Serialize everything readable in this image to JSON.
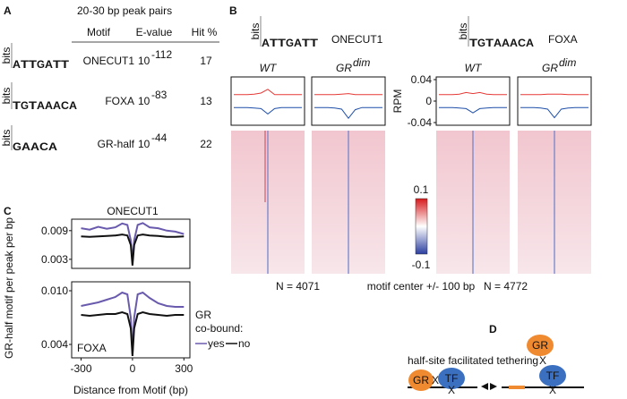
{
  "panel_a": {
    "label": "A",
    "title": "20-30 bp peak pairs",
    "headers": [
      "Motif",
      "E-value",
      "Hit %"
    ],
    "rows": [
      {
        "logo": [
          "A",
          "T",
          "T",
          "G",
          "A",
          "T",
          "T"
        ],
        "logo_axis": "bits",
        "motif": "ONECUT1",
        "evalue": {
          "base": "10",
          "exponent": "-112"
        },
        "hit": 17
      },
      {
        "logo": [
          "T",
          "G",
          "T",
          "A",
          "A",
          "A",
          "C",
          "A"
        ],
        "logo_axis": "bits",
        "motif": "FOXA",
        "evalue": {
          "base": "10",
          "exponent": "-83"
        },
        "hit": 13
      },
      {
        "logo": [
          "G",
          "A",
          "A",
          "C",
          "A"
        ],
        "logo_axis": "bits",
        "motif": "GR-half",
        "evalue": {
          "base": "10",
          "exponent": "-44"
        },
        "hit": 22
      }
    ]
  },
  "panel_b": {
    "label": "B",
    "motifs": [
      {
        "logo": [
          "A",
          "T",
          "T",
          "G",
          "A",
          "T",
          "T"
        ],
        "logo_axis": "bits",
        "name": "ONECUT1"
      },
      {
        "logo": [
          "T",
          "G",
          "T",
          "A",
          "A",
          "A",
          "C",
          "A"
        ],
        "logo_axis": "bits",
        "name": "FOXA"
      }
    ],
    "conditions": [
      {
        "name": "WT"
      },
      {
        "name": "GR",
        "superscript": "dim"
      },
      {
        "name": "WT"
      },
      {
        "name": "GR",
        "superscript": "dim"
      }
    ],
    "rpm_axis": {
      "label": "RPM",
      "ylim": [
        -0.045,
        0.045
      ],
      "yticks": [
        0.04,
        0,
        -0.04
      ]
    },
    "profiles": [
      {
        "series": [
          {
            "color": "#e53935",
            "values": [
              0.012,
              0.012,
              0.012,
              0.013,
              0.015,
              0.022,
              0.012,
              0.012,
              0.012,
              0.012,
              0.012
            ]
          },
          {
            "color": "#1e4fa8",
            "values": [
              -0.012,
              -0.012,
              -0.012,
              -0.013,
              -0.014,
              -0.024,
              -0.014,
              -0.012,
              -0.012,
              -0.012,
              -0.012
            ]
          }
        ]
      },
      {
        "series": [
          {
            "color": "#e53935",
            "values": [
              0.012,
              0.012,
              0.012,
              0.012,
              0.013,
              0.014,
              0.012,
              0.012,
              0.012,
              0.012,
              0.012
            ]
          },
          {
            "color": "#1e4fa8",
            "values": [
              -0.012,
              -0.012,
              -0.012,
              -0.013,
              -0.015,
              -0.032,
              -0.016,
              -0.012,
              -0.012,
              -0.012,
              -0.012
            ]
          }
        ]
      },
      {
        "series": [
          {
            "color": "#e53935",
            "values": [
              0.012,
              0.012,
              0.012,
              0.013,
              0.016,
              0.014,
              0.016,
              0.013,
              0.012,
              0.012,
              0.012
            ]
          },
          {
            "color": "#1e4fa8",
            "values": [
              -0.012,
              -0.012,
              -0.012,
              -0.013,
              -0.014,
              -0.022,
              -0.014,
              -0.013,
              -0.012,
              -0.012,
              -0.012
            ]
          }
        ]
      },
      {
        "series": [
          {
            "color": "#e53935",
            "values": [
              0.012,
              0.012,
              0.012,
              0.012,
              0.013,
              0.013,
              0.013,
              0.012,
              0.012,
              0.012,
              0.012
            ]
          },
          {
            "color": "#1e4fa8",
            "values": [
              -0.012,
              -0.012,
              -0.012,
              -0.013,
              -0.015,
              -0.031,
              -0.015,
              -0.013,
              -0.012,
              -0.012,
              -0.012
            ]
          }
        ]
      }
    ],
    "colorbar": {
      "ticks": [
        0.1,
        -0.1
      ]
    },
    "footer": [
      "N = 4071",
      "motif center +/- 100 bp",
      "N = 4772"
    ]
  },
  "panel_c": {
    "label": "C",
    "ylabel": "GR-half motif per peak per bp",
    "xlabel": "Distance from Motif (bp)",
    "x": [
      -300,
      -250,
      -200,
      -150,
      -100,
      -60,
      -30,
      -10,
      0,
      10,
      30,
      60,
      100,
      150,
      200,
      250,
      300
    ],
    "xlim": [
      -355,
      335
    ],
    "xticks": [
      -300,
      0,
      300
    ],
    "legend": {
      "title": [
        "GR",
        "co-bound:"
      ],
      "series": [
        {
          "name": "yes",
          "color": "#6a5aad"
        },
        {
          "name": "no",
          "color": "#111111"
        }
      ]
    },
    "plots": [
      {
        "title": "ONECUT1",
        "ylim": [
          0.0011,
          0.0114
        ],
        "yticks": [
          0.009,
          0.003
        ],
        "series": [
          [
            0.0095,
            0.0092,
            0.0098,
            0.0094,
            0.0097,
            0.0105,
            0.0102,
            0.007,
            0.0025,
            0.007,
            0.0102,
            0.0106,
            0.0097,
            0.0095,
            0.009,
            0.0088,
            0.0083
          ],
          [
            0.0078,
            0.0077,
            0.0078,
            0.0079,
            0.008,
            0.0082,
            0.008,
            0.006,
            0.0017,
            0.006,
            0.008,
            0.0082,
            0.008,
            0.0079,
            0.0077,
            0.0077,
            0.0078
          ]
        ]
      },
      {
        "title": "FOXA",
        "ylim": [
          0.0025,
          0.011
        ],
        "yticks": [
          {
            "value": 0.01,
            "label": "0.010"
          },
          0.004
        ],
        "series": [
          [
            0.0083,
            0.0085,
            0.0087,
            0.009,
            0.0093,
            0.0098,
            0.0096,
            0.007,
            0.0029,
            0.007,
            0.0096,
            0.0098,
            0.0092,
            0.0086,
            0.0083,
            0.0082,
            0.0082
          ],
          [
            0.0073,
            0.0072,
            0.0073,
            0.0074,
            0.0074,
            0.0076,
            0.0074,
            0.0058,
            0.0027,
            0.0058,
            0.0074,
            0.0076,
            0.0074,
            0.0073,
            0.0072,
            0.0073,
            0.0073
          ]
        ]
      }
    ]
  },
  "panel_d": {
    "label": "D",
    "title": "half-site facilitated tethering",
    "left": [
      "GR",
      "X",
      "TF",
      "X"
    ],
    "right": [
      "GR",
      "X",
      "TF",
      "X"
    ]
  }
}
